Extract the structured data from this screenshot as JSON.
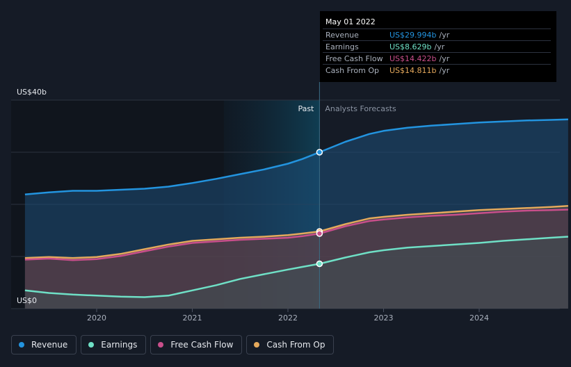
{
  "chart_data": {
    "type": "area",
    "y_top_label": "US$40b",
    "y_bottom_label": "US$0",
    "ylim": [
      0,
      40
    ],
    "y_gridlines": [
      0,
      10,
      20,
      30,
      40
    ],
    "x_ticks": [
      {
        "label": "2020",
        "x": 2020.0
      },
      {
        "label": "2021",
        "x": 2021.0
      },
      {
        "label": "2022",
        "x": 2022.0
      },
      {
        "label": "2023",
        "x": 2023.0
      },
      {
        "label": "2024",
        "x": 2024.0
      }
    ],
    "xlim": [
      2019.0,
      2024.93
    ],
    "past_label": "Past",
    "forecast_label": "Analysts Forecasts",
    "divider_x": 2022.33,
    "highlight_start_x": 2021.33,
    "series": [
      {
        "name": "Revenue",
        "color": "#2394df",
        "points": [
          [
            2019.25,
            21.9
          ],
          [
            2019.5,
            22.3
          ],
          [
            2019.75,
            22.6
          ],
          [
            2020.0,
            22.6
          ],
          [
            2020.25,
            22.8
          ],
          [
            2020.5,
            23.0
          ],
          [
            2020.75,
            23.4
          ],
          [
            2021.0,
            24.1
          ],
          [
            2021.25,
            24.9
          ],
          [
            2021.5,
            25.8
          ],
          [
            2021.75,
            26.7
          ],
          [
            2022.0,
            27.8
          ],
          [
            2022.15,
            28.7
          ],
          [
            2022.33,
            30.0
          ],
          [
            2022.6,
            32.0
          ],
          [
            2022.85,
            33.5
          ],
          [
            2023.0,
            34.1
          ],
          [
            2023.25,
            34.7
          ],
          [
            2023.5,
            35.1
          ],
          [
            2023.75,
            35.4
          ],
          [
            2024.0,
            35.7
          ],
          [
            2024.25,
            35.9
          ],
          [
            2024.5,
            36.1
          ],
          [
            2024.75,
            36.2
          ],
          [
            2024.93,
            36.3
          ]
        ]
      },
      {
        "name": "Cash From Op",
        "color": "#e5a95c",
        "points": [
          [
            2019.25,
            9.7
          ],
          [
            2019.5,
            9.9
          ],
          [
            2019.75,
            9.7
          ],
          [
            2020.0,
            9.9
          ],
          [
            2020.25,
            10.5
          ],
          [
            2020.5,
            11.4
          ],
          [
            2020.75,
            12.3
          ],
          [
            2021.0,
            13.0
          ],
          [
            2021.25,
            13.3
          ],
          [
            2021.5,
            13.6
          ],
          [
            2021.75,
            13.8
          ],
          [
            2022.0,
            14.1
          ],
          [
            2022.15,
            14.4
          ],
          [
            2022.33,
            14.8
          ],
          [
            2022.6,
            16.2
          ],
          [
            2022.85,
            17.3
          ],
          [
            2023.0,
            17.6
          ],
          [
            2023.25,
            18.0
          ],
          [
            2023.5,
            18.3
          ],
          [
            2023.75,
            18.6
          ],
          [
            2024.0,
            18.9
          ],
          [
            2024.25,
            19.1
          ],
          [
            2024.5,
            19.3
          ],
          [
            2024.75,
            19.5
          ],
          [
            2024.93,
            19.7
          ]
        ]
      },
      {
        "name": "Free Cash Flow",
        "color": "#c94f8b",
        "points": [
          [
            2019.25,
            9.4
          ],
          [
            2019.5,
            9.6
          ],
          [
            2019.75,
            9.3
          ],
          [
            2020.0,
            9.5
          ],
          [
            2020.25,
            10.1
          ],
          [
            2020.5,
            11.0
          ],
          [
            2020.75,
            11.9
          ],
          [
            2021.0,
            12.6
          ],
          [
            2021.25,
            12.9
          ],
          [
            2021.5,
            13.2
          ],
          [
            2021.75,
            13.4
          ],
          [
            2022.0,
            13.6
          ],
          [
            2022.15,
            13.9
          ],
          [
            2022.33,
            14.4
          ],
          [
            2022.6,
            15.8
          ],
          [
            2022.85,
            16.8
          ],
          [
            2023.0,
            17.1
          ],
          [
            2023.25,
            17.5
          ],
          [
            2023.5,
            17.8
          ],
          [
            2023.75,
            18.0
          ],
          [
            2024.0,
            18.3
          ],
          [
            2024.25,
            18.6
          ],
          [
            2024.5,
            18.8
          ],
          [
            2024.75,
            18.9
          ],
          [
            2024.93,
            19.0
          ]
        ]
      },
      {
        "name": "Earnings",
        "color": "#6fe0c6",
        "points": [
          [
            2019.25,
            3.5
          ],
          [
            2019.5,
            3.0
          ],
          [
            2019.75,
            2.7
          ],
          [
            2020.0,
            2.5
          ],
          [
            2020.25,
            2.3
          ],
          [
            2020.5,
            2.2
          ],
          [
            2020.75,
            2.5
          ],
          [
            2021.0,
            3.5
          ],
          [
            2021.25,
            4.5
          ],
          [
            2021.5,
            5.7
          ],
          [
            2021.75,
            6.6
          ],
          [
            2022.0,
            7.5
          ],
          [
            2022.15,
            8.0
          ],
          [
            2022.33,
            8.6
          ],
          [
            2022.6,
            9.8
          ],
          [
            2022.85,
            10.8
          ],
          [
            2023.0,
            11.2
          ],
          [
            2023.25,
            11.7
          ],
          [
            2023.5,
            12.0
          ],
          [
            2023.75,
            12.3
          ],
          [
            2024.0,
            12.6
          ],
          [
            2024.25,
            13.0
          ],
          [
            2024.5,
            13.3
          ],
          [
            2024.75,
            13.6
          ],
          [
            2024.93,
            13.8
          ]
        ]
      }
    ],
    "marker_x": 2022.33
  },
  "tooltip": {
    "date": "May 01 2022",
    "rows": [
      {
        "label": "Revenue",
        "value": "US$29.994b",
        "unit": "/yr",
        "color": "#2394df"
      },
      {
        "label": "Earnings",
        "value": "US$8.629b",
        "unit": "/yr",
        "color": "#6fe0c6"
      },
      {
        "label": "Free Cash Flow",
        "value": "US$14.422b",
        "unit": "/yr",
        "color": "#c94f8b"
      },
      {
        "label": "Cash From Op",
        "value": "US$14.811b",
        "unit": "/yr",
        "color": "#e5a95c"
      }
    ]
  },
  "legend": [
    {
      "label": "Revenue",
      "color": "#2394df"
    },
    {
      "label": "Earnings",
      "color": "#6fe0c6"
    },
    {
      "label": "Free Cash Flow",
      "color": "#c94f8b"
    },
    {
      "label": "Cash From Op",
      "color": "#e5a95c"
    }
  ]
}
